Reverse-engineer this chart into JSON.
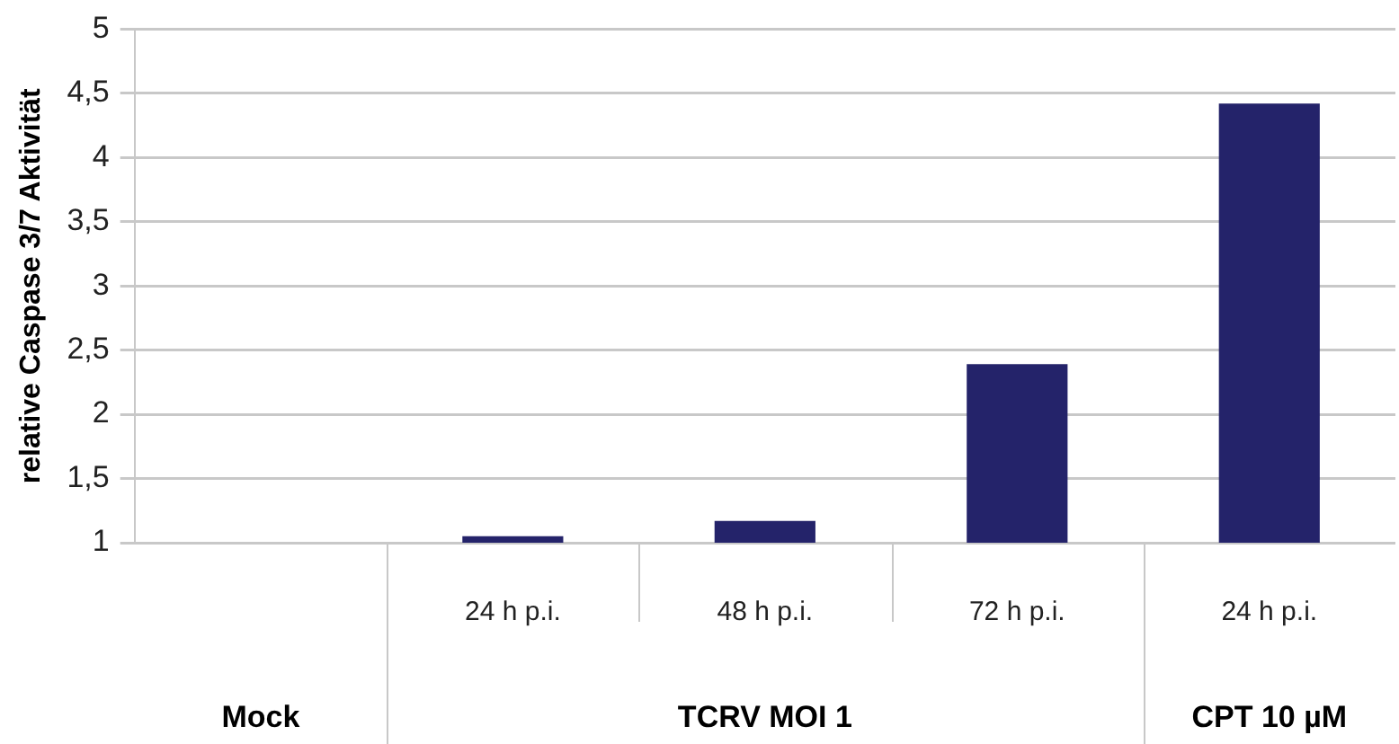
{
  "chart_data": {
    "type": "bar",
    "ylabel": "relative Caspase 3/7 Aktivität",
    "categories": [
      null,
      "24 h p.i.",
      "48 h p.i.",
      "72 h p.i.",
      "24 h p.i."
    ],
    "values": [
      null,
      1.05,
      1.17,
      2.39,
      4.42
    ],
    "color": "#24236a",
    "ylim": [
      1,
      5
    ],
    "yticks": [
      1,
      {
        "value": 1.5,
        "label": "1,5"
      },
      2,
      {
        "value": 2.5,
        "label": "2,5"
      },
      3,
      {
        "value": 3.5,
        "label": "3,5"
      },
      4,
      {
        "value": 4.5,
        "label": "4,5"
      },
      5
    ],
    "grid": "y",
    "annotations": [
      "Mock",
      "TCRV MOI 1",
      "CPT 10 µM"
    ]
  }
}
